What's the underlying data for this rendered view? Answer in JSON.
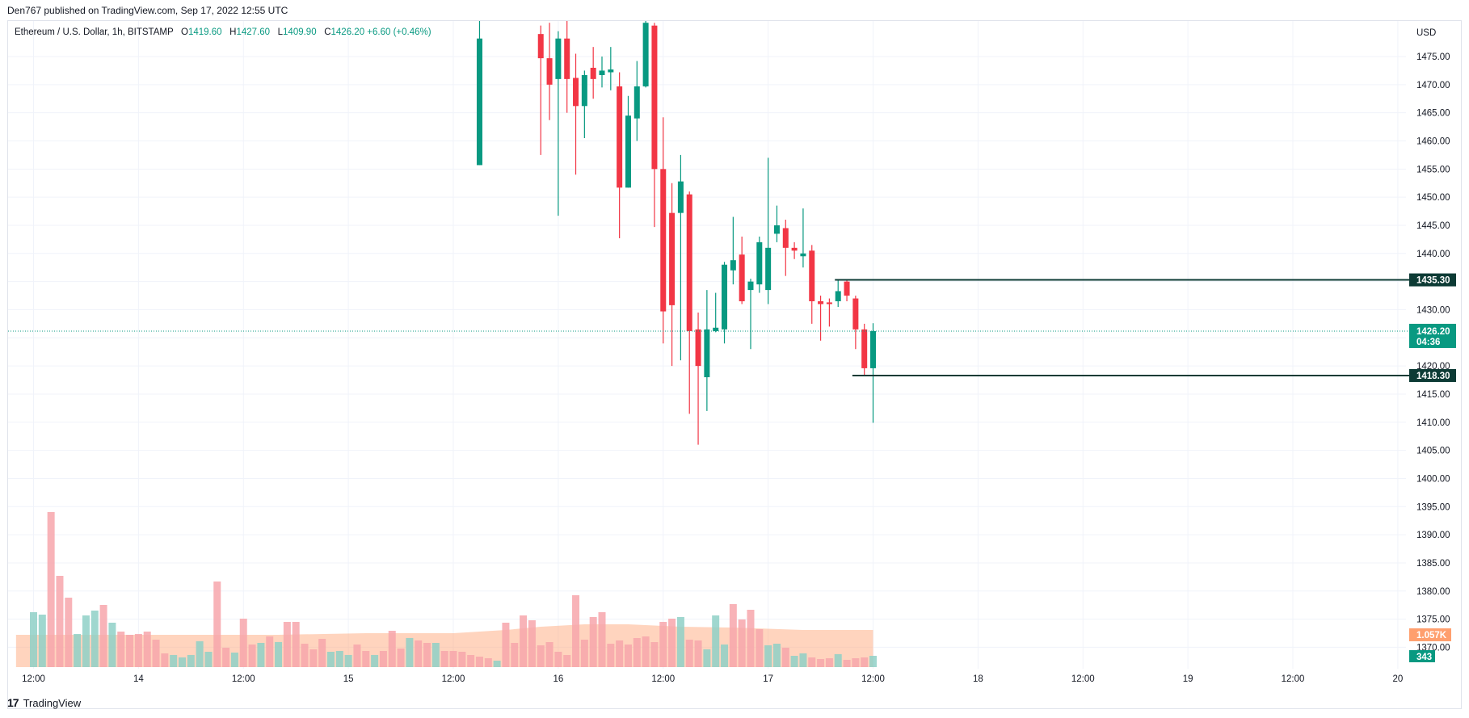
{
  "header": {
    "published": "Den767 published on TradingView.com, Sep 17, 2022 12:55 UTC"
  },
  "ticker": {
    "symbol": "Ethereum / U.S. Dollar, 1h, BITSTAMP",
    "open_label": "O",
    "open": "1419.60",
    "high_label": "H",
    "high": "1427.60",
    "low_label": "L",
    "low": "1409.90",
    "close_label": "C",
    "close": "1426.20",
    "change": "+6.60 (+0.46%)"
  },
  "footer": {
    "brand": "TradingView",
    "logo": "17"
  },
  "colors": {
    "up": "#089981",
    "down": "#f23645",
    "vol_up": "#8fd0c7",
    "vol_down": "#f7a6ab",
    "vol_ma": "#ff9f6e",
    "level_line": "#0d3b35",
    "grid": "#f0f3fa"
  },
  "chart_data": {
    "type": "candlestick",
    "currency_label": "USD",
    "y_ticks": [
      1475,
      1470,
      1465,
      1460,
      1455,
      1450,
      1445,
      1440,
      1435,
      1430,
      1425,
      1420,
      1415,
      1410,
      1405,
      1400,
      1395,
      1390,
      1385,
      1380,
      1375,
      1370
    ],
    "x_ticks": [
      {
        "label": "12:00",
        "hour": 12
      },
      {
        "label": "14",
        "hour": 24
      },
      {
        "label": "12:00",
        "hour": 36
      },
      {
        "label": "15",
        "hour": 48
      },
      {
        "label": "12:00",
        "hour": 60
      },
      {
        "label": "16",
        "hour": 72
      },
      {
        "label": "12:00",
        "hour": 84
      },
      {
        "label": "17",
        "hour": 96
      },
      {
        "label": "12:00",
        "hour": 108
      },
      {
        "label": "18",
        "hour": 120
      },
      {
        "label": "12:00",
        "hour": 132
      },
      {
        "label": "19",
        "hour": 144
      },
      {
        "label": "12:00",
        "hour": 156
      },
      {
        "label": "20",
        "hour": 168
      }
    ],
    "candles": [
      {
        "h": 63,
        "o": 1455.7,
        "c": 1478.2,
        "hi": 1482.0,
        "lo": 1455.7
      },
      {
        "h": 70,
        "o": 1479.0,
        "c": 1474.7,
        "hi": 1480.5,
        "lo": 1457.5
      },
      {
        "h": 71,
        "o": 1474.7,
        "c": 1470.0,
        "hi": 1481.0,
        "lo": 1463.7
      },
      {
        "h": 72,
        "o": 1471.0,
        "c": 1478.2,
        "hi": 1479.5,
        "lo": 1446.7
      },
      {
        "h": 73,
        "o": 1478.2,
        "c": 1471.0,
        "hi": 1481.5,
        "lo": 1465.0
      },
      {
        "h": 74,
        "o": 1471.2,
        "c": 1466.2,
        "hi": 1475.5,
        "lo": 1454.0
      },
      {
        "h": 75,
        "o": 1466.2,
        "c": 1471.7,
        "hi": 1472.5,
        "lo": 1460.5
      },
      {
        "h": 76,
        "o": 1473.0,
        "c": 1471.0,
        "hi": 1476.7,
        "lo": 1467.5
      },
      {
        "h": 77,
        "o": 1471.7,
        "c": 1472.5,
        "hi": 1475.0,
        "lo": 1469.5
      },
      {
        "h": 78,
        "o": 1472.2,
        "c": 1472.7,
        "hi": 1476.7,
        "lo": 1469.0
      },
      {
        "h": 79,
        "o": 1469.7,
        "c": 1451.7,
        "hi": 1472.2,
        "lo": 1442.7
      },
      {
        "h": 80,
        "o": 1451.7,
        "c": 1464.5,
        "hi": 1468.0,
        "lo": 1451.7
      },
      {
        "h": 81,
        "o": 1464.0,
        "c": 1469.7,
        "hi": 1474.2,
        "lo": 1460.0
      },
      {
        "h": 82,
        "o": 1469.7,
        "c": 1481.0,
        "hi": 1483.0,
        "lo": 1469.5
      },
      {
        "h": 83,
        "o": 1480.5,
        "c": 1455.0,
        "hi": 1481.0,
        "lo": 1444.7
      },
      {
        "h": 84,
        "o": 1455.0,
        "c": 1429.7,
        "hi": 1464.2,
        "lo": 1424.0
      },
      {
        "h": 85,
        "o": 1447.2,
        "c": 1430.8,
        "hi": 1452.5,
        "lo": 1420.0
      },
      {
        "h": 86,
        "o": 1447.2,
        "c": 1452.8,
        "hi": 1457.5,
        "lo": 1421.0
      },
      {
        "h": 87,
        "o": 1450.5,
        "c": 1426.2,
        "hi": 1451.0,
        "lo": 1411.5
      },
      {
        "h": 88,
        "o": 1426.5,
        "c": 1420.0,
        "hi": 1429.5,
        "lo": 1406.0
      },
      {
        "h": 89,
        "o": 1418.0,
        "c": 1426.5,
        "hi": 1433.5,
        "lo": 1412.0
      },
      {
        "h": 90,
        "o": 1426.2,
        "c": 1426.8,
        "hi": 1433.0,
        "lo": 1426.0
      },
      {
        "h": 91,
        "o": 1426.5,
        "c": 1438.0,
        "hi": 1438.5,
        "lo": 1424.0
      },
      {
        "h": 92,
        "o": 1437.0,
        "c": 1438.8,
        "hi": 1446.5,
        "lo": 1434.5
      },
      {
        "h": 93,
        "o": 1439.8,
        "c": 1431.5,
        "hi": 1443.0,
        "lo": 1431.0
      },
      {
        "h": 94,
        "o": 1433.5,
        "c": 1435.0,
        "hi": 1435.5,
        "lo": 1423.0
      },
      {
        "h": 95,
        "o": 1434.5,
        "c": 1442.0,
        "hi": 1443.0,
        "lo": 1433.0
      },
      {
        "h": 96,
        "o": 1433.5,
        "c": 1441.0,
        "hi": 1457.0,
        "lo": 1431.0
      },
      {
        "h": 97,
        "o": 1443.5,
        "c": 1445.0,
        "hi": 1448.5,
        "lo": 1442.0
      },
      {
        "h": 98,
        "o": 1444.5,
        "c": 1441.0,
        "hi": 1446.0,
        "lo": 1436.0
      },
      {
        "h": 99,
        "o": 1441.0,
        "c": 1440.5,
        "hi": 1442.0,
        "lo": 1439.0
      },
      {
        "h": 100,
        "o": 1439.5,
        "c": 1440.0,
        "hi": 1448.0,
        "lo": 1437.5
      },
      {
        "h": 101,
        "o": 1440.5,
        "c": 1431.5,
        "hi": 1441.5,
        "lo": 1427.5
      },
      {
        "h": 102,
        "o": 1431.5,
        "c": 1431.0,
        "hi": 1432.5,
        "lo": 1424.5
      },
      {
        "h": 103,
        "o": 1431.3,
        "c": 1431.0,
        "hi": 1432.0,
        "lo": 1427.0
      },
      {
        "h": 104,
        "o": 1431.5,
        "c": 1433.3,
        "hi": 1435.3,
        "lo": 1430.5
      },
      {
        "h": 105,
        "o": 1435.0,
        "c": 1432.5,
        "hi": 1435.3,
        "lo": 1431.5
      },
      {
        "h": 106,
        "o": 1432.0,
        "c": 1426.5,
        "hi": 1432.5,
        "lo": 1423.0
      },
      {
        "h": 107,
        "o": 1426.5,
        "c": 1419.6,
        "hi": 1427.5,
        "lo": 1418.3
      },
      {
        "h": 108,
        "o": 1419.6,
        "c": 1426.2,
        "hi": 1427.6,
        "lo": 1409.9
      }
    ],
    "volume": [
      {
        "h": 12,
        "up": true,
        "v": 68
      },
      {
        "h": 13,
        "up": true,
        "v": 65
      },
      {
        "h": 14,
        "up": false,
        "v": 192
      },
      {
        "h": 15,
        "up": false,
        "v": 113
      },
      {
        "h": 16,
        "up": false,
        "v": 86
      },
      {
        "h": 17,
        "up": true,
        "v": 41
      },
      {
        "h": 18,
        "up": true,
        "v": 64
      },
      {
        "h": 19,
        "up": true,
        "v": 70
      },
      {
        "h": 20,
        "up": false,
        "v": 77
      },
      {
        "h": 21,
        "up": true,
        "v": 55
      },
      {
        "h": 22,
        "up": false,
        "v": 44
      },
      {
        "h": 23,
        "up": false,
        "v": 40
      },
      {
        "h": 24,
        "up": false,
        "v": 41
      },
      {
        "h": 25,
        "up": false,
        "v": 44
      },
      {
        "h": 26,
        "up": false,
        "v": 34
      },
      {
        "h": 27,
        "up": false,
        "v": 17
      },
      {
        "h": 28,
        "up": true,
        "v": 15
      },
      {
        "h": 29,
        "up": true,
        "v": 12
      },
      {
        "h": 30,
        "up": true,
        "v": 15
      },
      {
        "h": 31,
        "up": true,
        "v": 32
      },
      {
        "h": 32,
        "up": true,
        "v": 19
      },
      {
        "h": 33,
        "up": false,
        "v": 106
      },
      {
        "h": 34,
        "up": false,
        "v": 24
      },
      {
        "h": 35,
        "up": true,
        "v": 18
      },
      {
        "h": 36,
        "up": false,
        "v": 60
      },
      {
        "h": 37,
        "up": false,
        "v": 28
      },
      {
        "h": 38,
        "up": true,
        "v": 30
      },
      {
        "h": 39,
        "up": false,
        "v": 38
      },
      {
        "h": 40,
        "up": true,
        "v": 31
      },
      {
        "h": 41,
        "up": false,
        "v": 56
      },
      {
        "h": 42,
        "up": false,
        "v": 56
      },
      {
        "h": 43,
        "up": false,
        "v": 29
      },
      {
        "h": 44,
        "up": false,
        "v": 22
      },
      {
        "h": 45,
        "up": false,
        "v": 35
      },
      {
        "h": 46,
        "up": true,
        "v": 19
      },
      {
        "h": 47,
        "up": true,
        "v": 20
      },
      {
        "h": 48,
        "up": true,
        "v": 15
      },
      {
        "h": 49,
        "up": false,
        "v": 28
      },
      {
        "h": 50,
        "up": false,
        "v": 20
      },
      {
        "h": 51,
        "up": true,
        "v": 15
      },
      {
        "h": 52,
        "up": false,
        "v": 20
      },
      {
        "h": 53,
        "up": false,
        "v": 45
      },
      {
        "h": 54,
        "up": false,
        "v": 23
      },
      {
        "h": 55,
        "up": true,
        "v": 36
      },
      {
        "h": 56,
        "up": false,
        "v": 33
      },
      {
        "h": 57,
        "up": false,
        "v": 30
      },
      {
        "h": 58,
        "up": true,
        "v": 30
      },
      {
        "h": 59,
        "up": false,
        "v": 20
      },
      {
        "h": 60,
        "up": false,
        "v": 20
      },
      {
        "h": 61,
        "up": false,
        "v": 19
      },
      {
        "h": 62,
        "up": false,
        "v": 15
      },
      {
        "h": 63,
        "up": false,
        "v": 13
      },
      {
        "h": 64,
        "up": false,
        "v": 11
      },
      {
        "h": 65,
        "up": true,
        "v": 8
      },
      {
        "h": 66,
        "up": false,
        "v": 55
      },
      {
        "h": 67,
        "up": false,
        "v": 30
      },
      {
        "h": 68,
        "up": false,
        "v": 64
      },
      {
        "h": 69,
        "up": false,
        "v": 58
      },
      {
        "h": 70,
        "up": false,
        "v": 27
      },
      {
        "h": 71,
        "up": false,
        "v": 31
      },
      {
        "h": 72,
        "up": false,
        "v": 19
      },
      {
        "h": 73,
        "up": false,
        "v": 15
      },
      {
        "h": 74,
        "up": false,
        "v": 89
      },
      {
        "h": 75,
        "up": false,
        "v": 34
      },
      {
        "h": 76,
        "up": false,
        "v": 62
      },
      {
        "h": 77,
        "up": false,
        "v": 68
      },
      {
        "h": 78,
        "up": false,
        "v": 29
      },
      {
        "h": 79,
        "up": false,
        "v": 33
      },
      {
        "h": 80,
        "up": false,
        "v": 28
      },
      {
        "h": 81,
        "up": false,
        "v": 36
      },
      {
        "h": 82,
        "up": false,
        "v": 38
      },
      {
        "h": 83,
        "up": false,
        "v": 31
      },
      {
        "h": 84,
        "up": false,
        "v": 56
      },
      {
        "h": 85,
        "up": false,
        "v": 60
      },
      {
        "h": 86,
        "up": true,
        "v": 62
      },
      {
        "h": 87,
        "up": false,
        "v": 34
      },
      {
        "h": 88,
        "up": false,
        "v": 33
      },
      {
        "h": 89,
        "up": true,
        "v": 22
      },
      {
        "h": 90,
        "up": true,
        "v": 64
      },
      {
        "h": 91,
        "up": true,
        "v": 28
      },
      {
        "h": 92,
        "up": false,
        "v": 78
      },
      {
        "h": 93,
        "up": false,
        "v": 59
      },
      {
        "h": 94,
        "up": false,
        "v": 71
      },
      {
        "h": 95,
        "up": false,
        "v": 47
      },
      {
        "h": 96,
        "up": true,
        "v": 27
      },
      {
        "h": 97,
        "up": true,
        "v": 29
      },
      {
        "h": 98,
        "up": false,
        "v": 24
      },
      {
        "h": 99,
        "up": true,
        "v": 14
      },
      {
        "h": 100,
        "up": true,
        "v": 17
      },
      {
        "h": 101,
        "up": false,
        "v": 12
      },
      {
        "h": 102,
        "up": false,
        "v": 10
      },
      {
        "h": 103,
        "up": false,
        "v": 11
      },
      {
        "h": 104,
        "up": true,
        "v": 16
      },
      {
        "h": 105,
        "up": false,
        "v": 9
      },
      {
        "h": 106,
        "up": false,
        "v": 11
      },
      {
        "h": 107,
        "up": false,
        "v": 12
      },
      {
        "h": 108,
        "up": true,
        "v": 14
      }
    ],
    "hidden_volume_ma_values": [
      {
        "h": 10,
        "v": 40
      },
      {
        "h": 30,
        "v": 40
      },
      {
        "h": 40,
        "v": 40
      },
      {
        "h": 50,
        "v": 42
      },
      {
        "h": 60,
        "v": 42
      },
      {
        "h": 66,
        "v": 46
      },
      {
        "h": 70,
        "v": 50
      },
      {
        "h": 75,
        "v": 53
      },
      {
        "h": 80,
        "v": 53
      },
      {
        "h": 86,
        "v": 50
      },
      {
        "h": 92,
        "v": 49
      },
      {
        "h": 100,
        "v": 46
      },
      {
        "h": 108,
        "v": 46
      }
    ],
    "levels": [
      {
        "value": 1435.3,
        "label": "1435.30",
        "from_hour": 104
      },
      {
        "value": 1418.3,
        "label": "1418.30",
        "from_hour": 106
      }
    ],
    "last_price": {
      "value": 1426.2,
      "label": "1426.20",
      "countdown": "04:36"
    },
    "volume_ma_label": "1.057K",
    "volume_last_label": "343"
  }
}
